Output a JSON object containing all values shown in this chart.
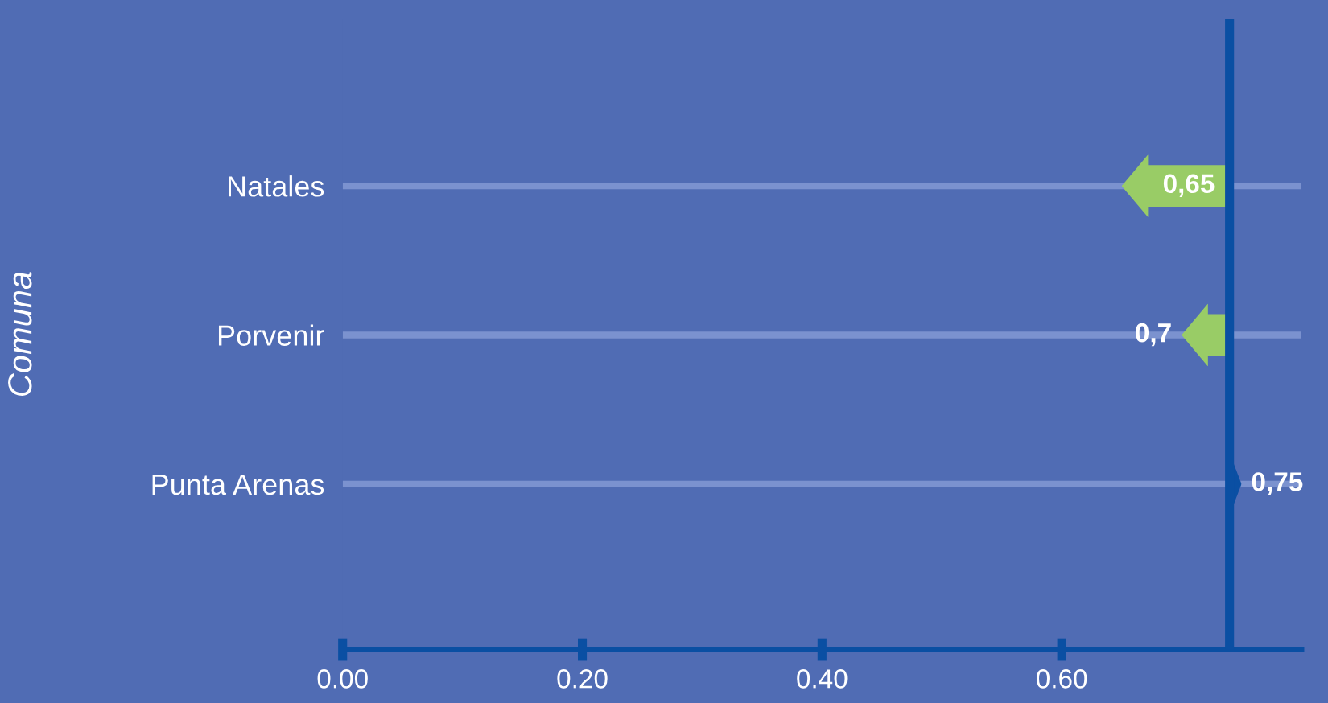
{
  "chart_data": {
    "type": "bar",
    "orientation": "horizontal",
    "ylabel": "Comuna",
    "categories": [
      "Natales",
      "Porvenir",
      "Punta Arenas"
    ],
    "base": [
      0.74,
      0.74,
      0.74
    ],
    "values": [
      -0.09,
      -0.04,
      0.01
    ],
    "value_labels": [
      "0,65",
      "0,7",
      "0,75"
    ],
    "colors": [
      "#99cc66",
      "#99cc66",
      "#0a4fa3"
    ],
    "xlim": [
      0,
      0.8
    ],
    "xticks": [
      {
        "value": 0,
        "label": "0.00"
      },
      {
        "value": 0.2,
        "label": "0.20"
      },
      {
        "value": 0.4,
        "label": "0.40"
      },
      {
        "value": 0.6,
        "label": "0.60"
      }
    ],
    "tick_labels": "both",
    "ref_lines": [
      {
        "axis": "x",
        "value": 0.74,
        "color": "#0a4fa3"
      }
    ],
    "grid": "y"
  }
}
